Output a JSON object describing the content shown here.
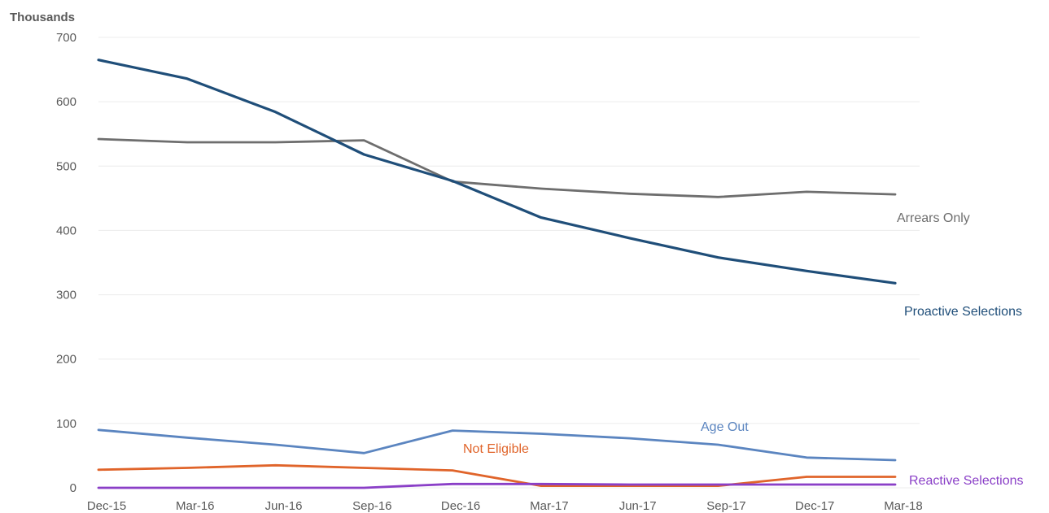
{
  "chart_data": {
    "type": "line",
    "ylabel": "Thousands",
    "xlabel": "",
    "categories": [
      "Dec-15",
      "Mar-16",
      "Jun-16",
      "Sep-16",
      "Dec-16",
      "Mar-17",
      "Jun-17",
      "Sep-17",
      "Dec-17",
      "Mar-18"
    ],
    "yticks": [
      "0",
      "100",
      "200",
      "300",
      "400",
      "500",
      "600",
      "700"
    ],
    "ylim": [
      0,
      700
    ],
    "grid": true,
    "series": [
      {
        "name": "Proactive Selections",
        "color": "#1f4e79",
        "values": [
          665,
          636,
          584,
          518,
          477,
          420,
          388,
          358,
          337,
          318
        ]
      },
      {
        "name": "Arrears Only",
        "color": "#6e6e6e",
        "values": [
          542,
          537,
          537,
          540,
          476,
          465,
          457,
          452,
          460,
          456
        ]
      },
      {
        "name": "Age Out",
        "color": "#5b85c0",
        "values": [
          90,
          78,
          67,
          54,
          89,
          84,
          77,
          67,
          47,
          43
        ]
      },
      {
        "name": "Not Eligible",
        "color": "#e0642a",
        "values": [
          28,
          31,
          35,
          31,
          27,
          3,
          3,
          3,
          17,
          17
        ]
      },
      {
        "name": "Reactive Selections",
        "color": "#8a3fc7",
        "values": [
          0,
          0,
          0,
          0,
          6,
          6,
          5,
          5,
          5,
          5
        ]
      }
    ]
  }
}
